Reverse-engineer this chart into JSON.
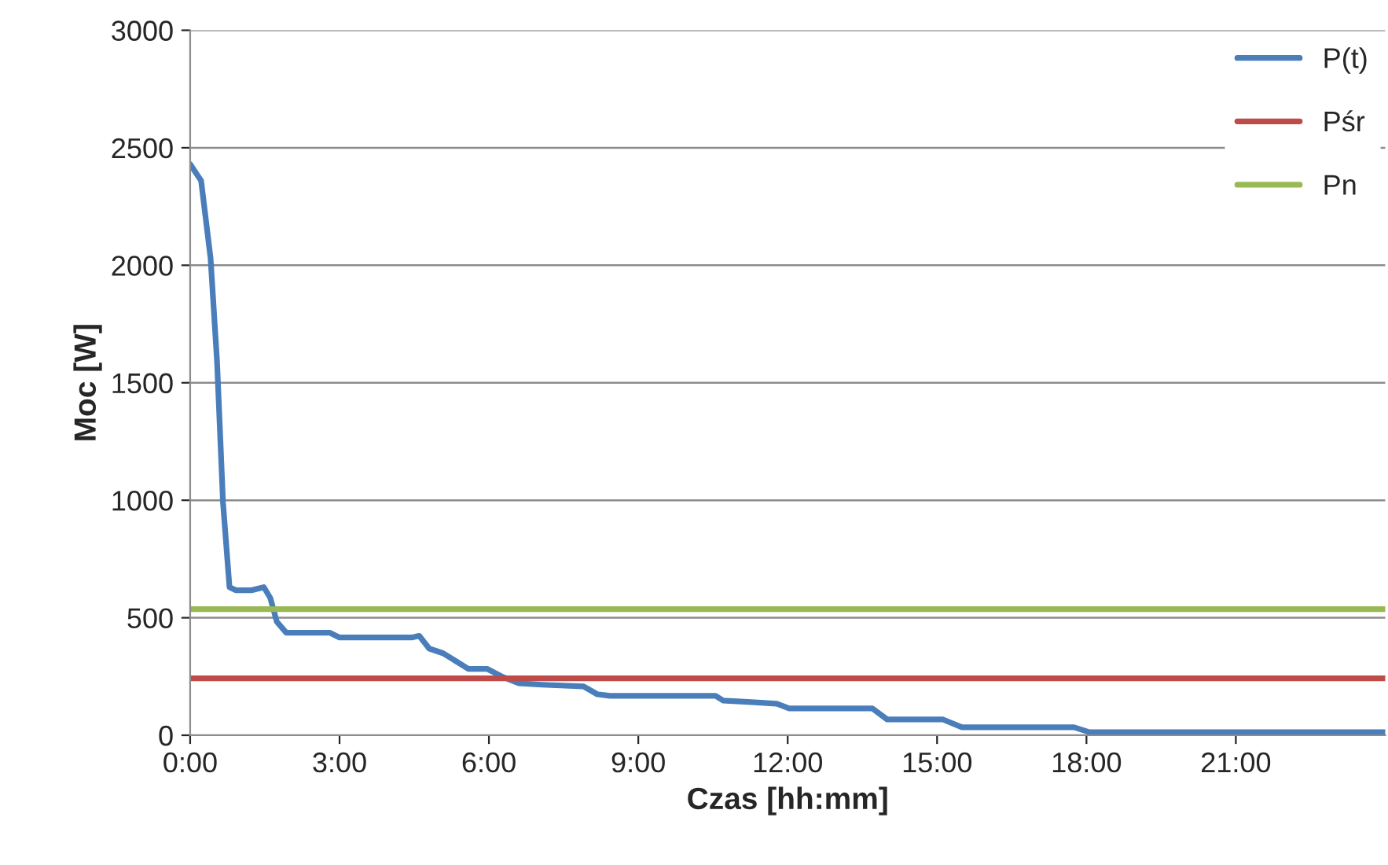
{
  "chart_data": {
    "type": "line",
    "xlabel": "Czas [hh:mm]",
    "ylabel": "Moc [W]",
    "xlim": [
      0,
      24
    ],
    "ylim": [
      0,
      3000
    ],
    "xticks": [
      {
        "value": 0,
        "label": "0:00"
      },
      {
        "value": 3,
        "label": "3:00"
      },
      {
        "value": 6,
        "label": "6:00"
      },
      {
        "value": 9,
        "label": "9:00"
      },
      {
        "value": 12,
        "label": "12:00"
      },
      {
        "value": 15,
        "label": "15:00"
      },
      {
        "value": 18,
        "label": "18:00"
      },
      {
        "value": 21,
        "label": "21:00"
      }
    ],
    "yticks": [
      0,
      500,
      1000,
      1500,
      2000,
      2500,
      3000
    ],
    "grid": "y",
    "legend": "top right",
    "marker": "none",
    "line_style": "solid",
    "series": [
      {
        "name": "P(t)",
        "color": "#4a7ebb",
        "x": [
          0,
          0.22,
          0.41,
          0.54,
          0.66,
          0.79,
          0.92,
          1.23,
          1.48,
          1.61,
          1.74,
          1.93,
          2.81,
          3.0,
          4.45,
          4.6,
          4.8,
          5.08,
          5.34,
          5.59,
          5.97,
          6.28,
          6.6,
          7.07,
          7.9,
          8.18,
          8.43,
          10.55,
          10.7,
          11.27,
          11.78,
          12.03,
          13.7,
          14.0,
          15.12,
          15.5,
          17.75,
          18.06,
          24
        ],
        "values": [
          2430,
          2360,
          2030,
          1590,
          990,
          630,
          617,
          617,
          630,
          584,
          483,
          436,
          436,
          416,
          416,
          423,
          369,
          349,
          315,
          282,
          282,
          248,
          221,
          215,
          208,
          174,
          168,
          168,
          148,
          141,
          134,
          114,
          114,
          67,
          67,
          34,
          34,
          13,
          13
        ]
      },
      {
        "name": "Pśr",
        "color": "#be4b48",
        "x": [
          0,
          24
        ],
        "values": [
          242,
          242
        ]
      },
      {
        "name": "Pn",
        "color": "#98b954",
        "x": [
          0,
          24
        ],
        "values": [
          537,
          537
        ]
      }
    ]
  }
}
